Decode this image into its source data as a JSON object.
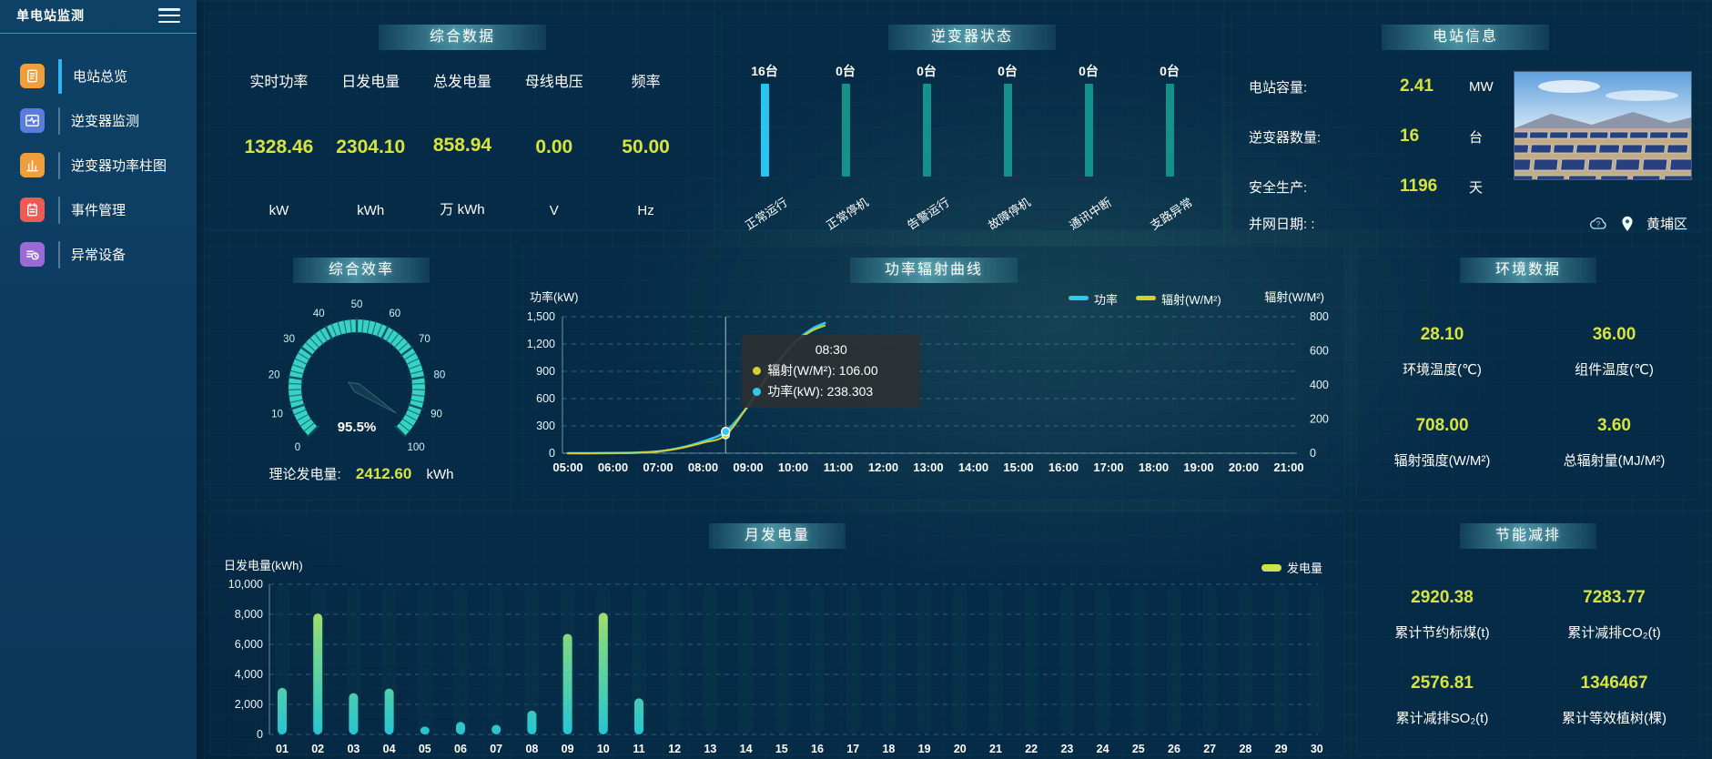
{
  "sidebar": {
    "title": "单电站监测",
    "items": [
      {
        "label": "电站总览",
        "icon": "document-icon",
        "color": "#ef9e3c",
        "active": true
      },
      {
        "label": "逆变器监测",
        "icon": "waveform-icon",
        "color": "#5a7ce0",
        "active": false
      },
      {
        "label": "逆变器功率柱图",
        "icon": "bar-chart-icon",
        "color": "#ef9e3c",
        "active": false
      },
      {
        "label": "事件管理",
        "icon": "notebook-icon",
        "color": "#ee5b52",
        "active": false
      },
      {
        "label": "异常设备",
        "icon": "device-clock-icon",
        "color": "#9a6bd5",
        "active": false
      }
    ]
  },
  "panels": {
    "summary": {
      "title": "综合数据",
      "metrics": [
        {
          "label": "实时功率",
          "value": "1328.46",
          "unit": "kW"
        },
        {
          "label": "日发电量",
          "value": "2304.10",
          "unit": "kWh"
        },
        {
          "label": "总发电量",
          "value": "858.94",
          "unit": "万 kWh"
        },
        {
          "label": "母线电压",
          "value": "0.00",
          "unit": "V"
        },
        {
          "label": "频率",
          "value": "50.00",
          "unit": "Hz"
        }
      ]
    },
    "inverter": {
      "title": "逆变器状态"
    },
    "station": {
      "title": "电站信息",
      "rows": [
        {
          "label": "电站容量:",
          "value": "2.41",
          "unit": "MW"
        },
        {
          "label": "逆变器数量:",
          "value": "16",
          "unit": "台"
        },
        {
          "label": "安全生产:",
          "value": "1196",
          "unit": "天"
        }
      ],
      "grid_row_label": "并网日期: :",
      "location": "黄埔区"
    },
    "efficiency": {
      "title": "综合效率",
      "theory": {
        "label": "理论发电量:",
        "value": "2412.60",
        "unit": "kWh"
      }
    },
    "curve": {
      "title": "功率辐射曲线"
    },
    "environment": {
      "title": "环境数据",
      "metrics": [
        {
          "value": "28.10",
          "label": "环境温度(℃)"
        },
        {
          "value": "36.00",
          "label": "组件温度(℃)"
        },
        {
          "value": "708.00",
          "label": "辐射强度(W/M²)"
        },
        {
          "value": "3.60",
          "label": "总辐射量(MJ/M²)"
        }
      ]
    },
    "monthly": {
      "title": "月发电量"
    },
    "saving": {
      "title": "节能减排",
      "metrics": [
        {
          "value": "2920.38",
          "label": "累计节约标煤(t)"
        },
        {
          "value": "7283.77",
          "label": "累计减排CO₂(t)"
        },
        {
          "value": "2576.81",
          "label": "累计减排SO₂(t)"
        },
        {
          "value": "1346467",
          "label": "累计等效植树(棵)"
        }
      ]
    }
  },
  "colors": {
    "accent_yellow": "#d7e43d",
    "inverter_active": "#29c5f2",
    "inverter_idle": "#13918a",
    "line_power": "#2fc8f0",
    "line_radiation": "#d6cd2e",
    "gauge": "#38d2c2",
    "bar_top": "#cde24c",
    "bar_mid": "#7cd887",
    "bar_bottom": "#27c4d2"
  },
  "chart_data": [
    {
      "id": "inverter_status",
      "type": "bar",
      "categories": [
        "正常运行",
        "正常停机",
        "告警运行",
        "故障停机",
        "通讯中断",
        "支路异常"
      ],
      "values": [
        16,
        0,
        0,
        0,
        0,
        0
      ],
      "unit_suffix": "台",
      "layout_note": "all bars equal height; color marks non-zero"
    },
    {
      "id": "efficiency_gauge",
      "type": "gauge",
      "value": 95.5,
      "display": "95.5%",
      "min": 0,
      "max": 100,
      "tick_labels": [
        0,
        10,
        20,
        30,
        40,
        50,
        60,
        70,
        80,
        90,
        100
      ]
    },
    {
      "id": "power_radiation",
      "type": "line",
      "x_tick_labels": [
        "05:00",
        "06:00",
        "07:00",
        "08:00",
        "09:00",
        "10:00",
        "11:00",
        "12:00",
        "13:00",
        "14:00",
        "15:00",
        "16:00",
        "17:00",
        "18:00",
        "19:00",
        "20:00",
        "21:00"
      ],
      "x_range_hours": [
        5,
        21
      ],
      "left_axis": {
        "title": "功率(kW)",
        "tick_labels": [
          "1,500",
          "1,200",
          "900",
          "600",
          "300",
          "0"
        ],
        "max": 1500
      },
      "right_axis": {
        "title": "辐射(W/M²)",
        "tick_labels": [
          "800",
          "600",
          "400",
          "200",
          "0"
        ],
        "max": 800
      },
      "legend": [
        {
          "label": "功率",
          "color": "#2fc8f0"
        },
        {
          "label": "辐射(W/M²)",
          "color": "#d6cd2e"
        }
      ],
      "series": [
        {
          "name": "功率",
          "axis": "left",
          "color": "#2fc8f0",
          "width": 2.6,
          "points": [
            [
              5,
              0
            ],
            [
              5.5,
              0
            ],
            [
              6,
              2
            ],
            [
              6.5,
              6
            ],
            [
              7,
              20
            ],
            [
              7.5,
              60
            ],
            [
              8,
              130
            ],
            [
              8.5,
              238.3
            ],
            [
              9,
              520
            ],
            [
              9.5,
              900
            ],
            [
              10,
              1200
            ],
            [
              10.4,
              1360
            ],
            [
              10.7,
              1430
            ]
          ]
        },
        {
          "name": "辐射(W/M²)",
          "axis": "right",
          "color": "#d6cd2e",
          "width": 2,
          "points": [
            [
              5,
              0
            ],
            [
              5.5,
              0
            ],
            [
              6,
              1
            ],
            [
              6.5,
              3
            ],
            [
              7,
              10
            ],
            [
              7.5,
              30
            ],
            [
              8,
              62
            ],
            [
              8.5,
              106
            ],
            [
              9,
              280
            ],
            [
              9.5,
              480
            ],
            [
              10,
              640
            ],
            [
              10.4,
              715
            ],
            [
              10.7,
              748
            ]
          ]
        }
      ],
      "tooltip": {
        "time": "08:30",
        "hover_hour": 8.5,
        "rows": [
          {
            "label": "辐射(W/M²)",
            "value": "106.00",
            "color": "#d6cd2e"
          },
          {
            "label": "功率(kW)",
            "value": "238.303",
            "color": "#2fc8f0"
          }
        ]
      }
    },
    {
      "id": "monthly_generation",
      "type": "bar",
      "ylabel": "日发电量(kWh)",
      "legend": "发电量",
      "categories": [
        "01",
        "02",
        "03",
        "04",
        "05",
        "06",
        "07",
        "08",
        "09",
        "10",
        "11",
        "12",
        "13",
        "14",
        "15",
        "16",
        "17",
        "18",
        "19",
        "20",
        "21",
        "22",
        "23",
        "24",
        "25",
        "26",
        "27",
        "28",
        "29",
        "30"
      ],
      "values": [
        3100,
        8050,
        2750,
        3050,
        520,
        830,
        640,
        1580,
        6700,
        8100,
        2400,
        0,
        0,
        0,
        0,
        0,
        0,
        0,
        0,
        0,
        0,
        0,
        0,
        0,
        0,
        0,
        0,
        0,
        0,
        0
      ],
      "ylim": [
        0,
        10000
      ],
      "y_tick_labels": [
        "10,000",
        "8,000",
        "6,000",
        "4,000",
        "2,000",
        "0"
      ]
    }
  ]
}
